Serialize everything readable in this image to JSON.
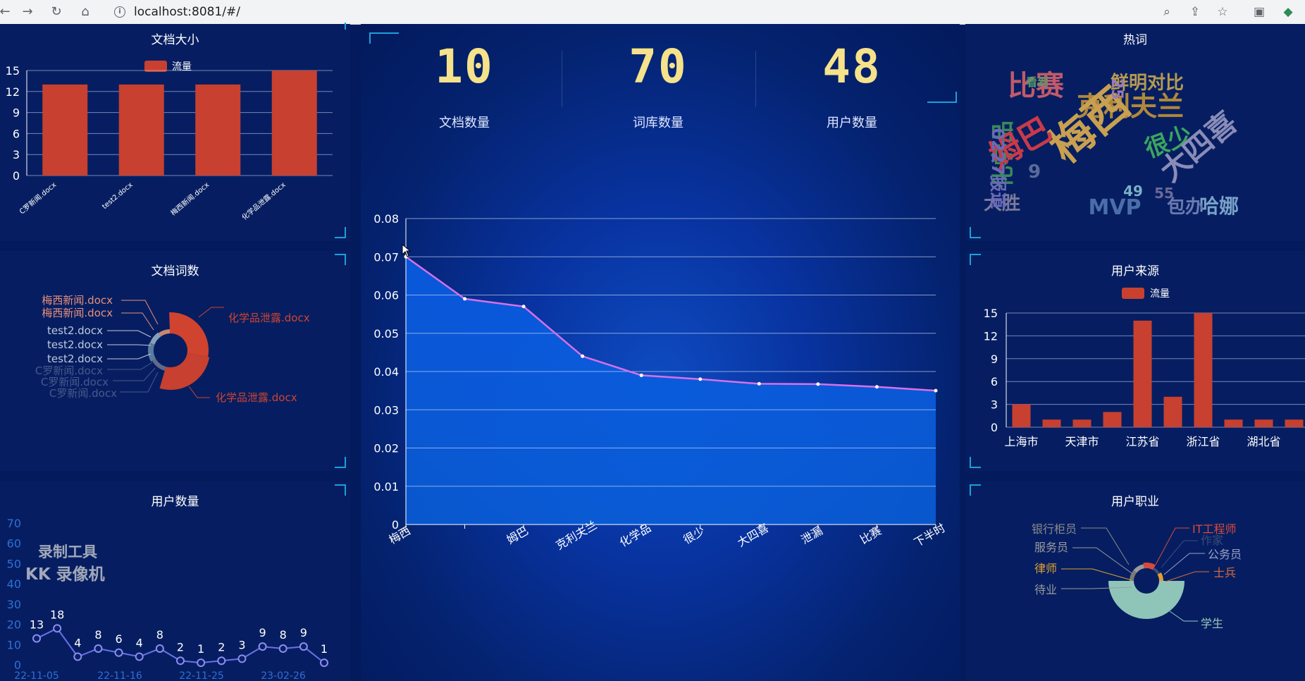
{
  "browser": {
    "url": "localhost:8081/#/"
  },
  "stats": [
    {
      "value": "10",
      "label": "文档数量"
    },
    {
      "value": "70",
      "label": "词库数量"
    },
    {
      "value": "48",
      "label": "用户数量"
    }
  ],
  "panels": {
    "doc_size": "文档大小",
    "doc_words": "文档词数",
    "user_count": "用户数量",
    "hot_words": "热词",
    "user_source": "用户来源",
    "user_job": "用户职业"
  },
  "watermark": {
    "line1": "录制工具",
    "line2": "KK 录像机"
  },
  "colors": {
    "bar": "#c8402f",
    "line": "#d870e8",
    "area": "#0a60dc",
    "accent": "#1e9fd8",
    "digits": "#f5e28a"
  },
  "chart_data": [
    {
      "type": "bar",
      "title": "文档大小",
      "legend": "流量",
      "categories": [
        "C罗新闻.docx",
        "test2.docx",
        "梅西新闻.docx",
        "化学品泄露.docx"
      ],
      "series": [
        {
          "name": "流量",
          "values": [
            13,
            13,
            13,
            15
          ]
        }
      ],
      "yticks": [
        0,
        3,
        6,
        9,
        12,
        15
      ],
      "ylim": [
        0,
        15
      ]
    },
    {
      "type": "pie",
      "title": "文档词数",
      "labels_left": [
        "梅西新闻.docx",
        "梅西新闻.docx",
        "test2.docx",
        "test2.docx",
        "test2.docx",
        "C罗新闻.docx",
        "C罗新闻.docx",
        "C罗新闻.docx"
      ],
      "labels_right": [
        "化学品泄露.docx",
        "化学品泄露.docx"
      ],
      "colors_note": "rose donut; large red slices for 化学品泄露.docx"
    },
    {
      "type": "line",
      "title": "用户数量",
      "yticks": [
        0,
        10,
        20,
        30,
        40,
        50,
        60,
        70
      ],
      "ylim": [
        0,
        70
      ],
      "x_labels": [
        "22-11-05",
        "22-11-16",
        "22-11-25",
        "23-02-26"
      ],
      "values": [
        13,
        18,
        4,
        8,
        6,
        4,
        8,
        2,
        1,
        2,
        3,
        9,
        8,
        9,
        1
      ]
    },
    {
      "type": "area",
      "categories": [
        "梅西",
        "",
        "姆巴",
        "克利夫兰",
        "化学品",
        "很少",
        "大四喜",
        "泄漏",
        "比赛",
        "下半时"
      ],
      "values": [
        0.07,
        0.059,
        0.057,
        0.044,
        0.039,
        0.038,
        0.0368,
        0.0367,
        0.036,
        0.035
      ],
      "yticks": [
        "0",
        "0.01",
        "0.02",
        "0.03",
        "0.04",
        "0.05",
        "0.06",
        "0.07",
        "0.08"
      ],
      "ylim": [
        0,
        0.08
      ]
    },
    {
      "type": "wordcloud",
      "title": "热词",
      "words": [
        {
          "text": "比赛",
          "color": "#c15a6a"
        },
        {
          "text": "鲜明对比",
          "color": "#b69a52"
        },
        {
          "text": "克利夫兰",
          "color": "#b0883a"
        },
        {
          "text": "梅西",
          "color": "#c8a050"
        },
        {
          "text": "化学品",
          "color": "#3a8b5a"
        },
        {
          "text": "很少",
          "color": "#3aa55f"
        },
        {
          "text": "大四喜",
          "color": "#8a8cb8"
        },
        {
          "text": "MVP",
          "color": "#4a6ea8"
        },
        {
          "text": "哈娜",
          "color": "#7aa2c8"
        },
        {
          "text": "包办",
          "color": "#6a7ab0"
        },
        {
          "text": "大胜",
          "color": "#7a7a9a"
        },
        {
          "text": "姆巴",
          "color": "#c83a4a"
        },
        {
          "text": "0227报道",
          "color": "#6a6ab8"
        },
        {
          "text": "25",
          "color": "#9a7ab8"
        },
        {
          "text": "49",
          "color": "#7ab0c8"
        },
        {
          "text": "55",
          "color": "#6a6a9a"
        },
        {
          "text": "9",
          "color": "#5a6a9a"
        },
        {
          "text": "看到",
          "color": "#5a9a6a"
        }
      ]
    },
    {
      "type": "bar",
      "title": "用户来源",
      "legend": "流量",
      "categories": [
        "上海市",
        "",
        "天津市",
        "",
        "江苏省",
        "",
        "浙江省",
        "",
        "湖北省",
        ""
      ],
      "x_labels": [
        "上海市",
        "天津市",
        "江苏省",
        "浙江省",
        "湖北省"
      ],
      "series": [
        {
          "name": "流量",
          "values": [
            3,
            1,
            1,
            2,
            14,
            4,
            15,
            1,
            1,
            1
          ]
        }
      ],
      "yticks": [
        0,
        3,
        6,
        9,
        12,
        15
      ],
      "ylim": [
        0,
        15
      ]
    },
    {
      "type": "pie",
      "title": "用户职业",
      "labels": [
        {
          "text": "银行柜员",
          "color": "#8a8a8a",
          "side": "left"
        },
        {
          "text": "服务员",
          "color": "#9a9a9a",
          "side": "left"
        },
        {
          "text": "律师",
          "color": "#e0a030",
          "side": "left"
        },
        {
          "text": "待业",
          "color": "#9a9a9a",
          "side": "left"
        },
        {
          "text": "IT工程师",
          "color": "#d84a3a",
          "side": "right"
        },
        {
          "text": "作家",
          "color": "#3a4a7a",
          "side": "right"
        },
        {
          "text": "公务员",
          "color": "#9aa0c8",
          "side": "right"
        },
        {
          "text": "士兵",
          "color": "#d86a3a",
          "side": "right"
        },
        {
          "text": "学生",
          "color": "#9ac8c0",
          "side": "right"
        }
      ]
    }
  ]
}
